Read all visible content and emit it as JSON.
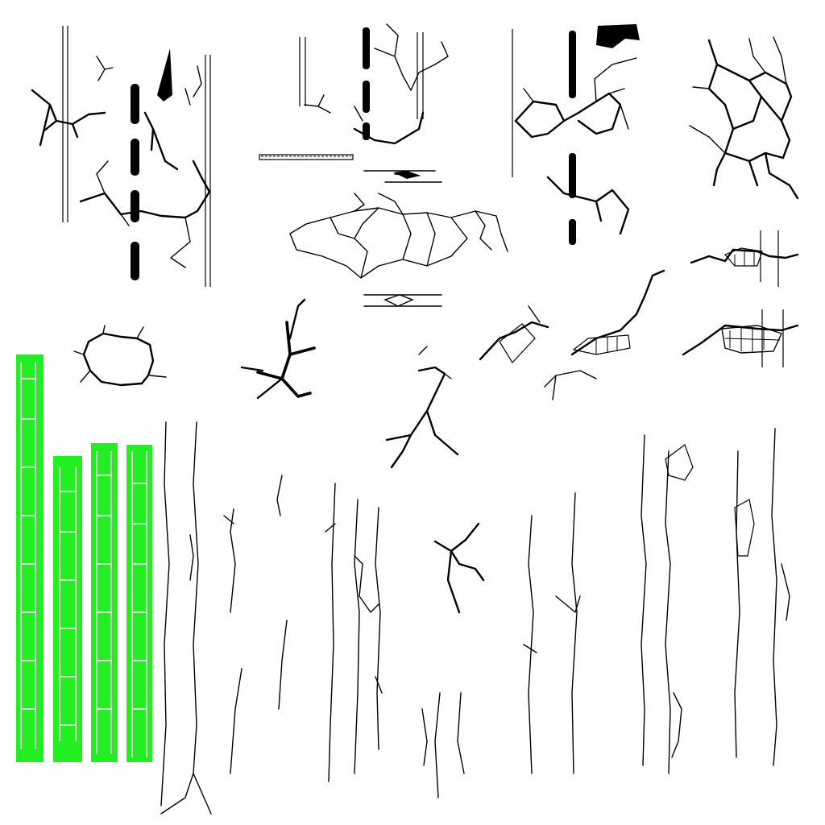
{
  "colors": {
    "background": "#ffffff",
    "ink": "#000000",
    "highlight": "#22ee22"
  },
  "sprites": [
    "road-dashed-lane-cracks",
    "edge-line-cracks",
    "dashed-lane-pothole-cracks",
    "alligator-crack-network",
    "block-crack-with-lines",
    "ring-crack",
    "spider-crack",
    "patched-crack-pair",
    "highlighted-crack-strips",
    "longitudinal-crack-strips"
  ]
}
